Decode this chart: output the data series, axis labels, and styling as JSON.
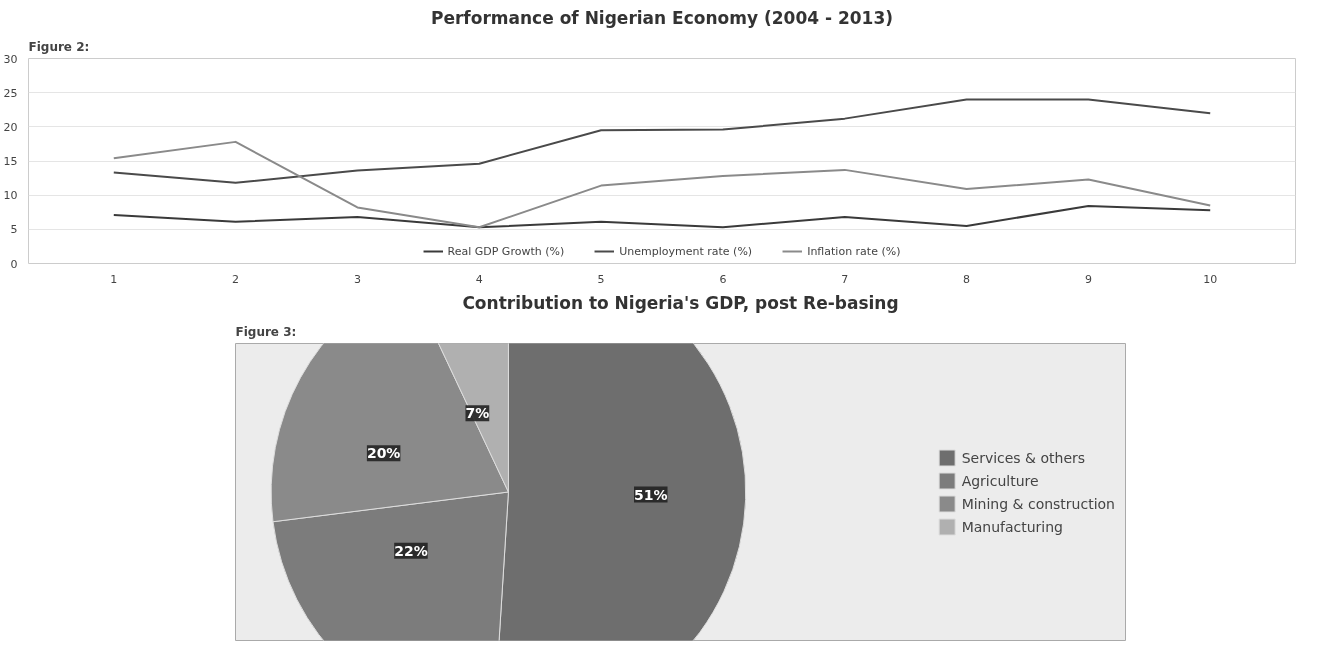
{
  "chart_data": [
    {
      "type": "line",
      "title": "Performance of Nigerian Economy (2004 - 2013)",
      "annotations": [
        "Figure 2:"
      ],
      "categories": [
        "1",
        "2",
        "3",
        "4",
        "5",
        "6",
        "7",
        "8",
        "9",
        "10"
      ],
      "series": [
        {
          "name": "Real GDP Growth (%)",
          "color": "#3a3a3a",
          "values": [
            7.1,
            6.1,
            6.8,
            5.3,
            6.1,
            5.3,
            6.8,
            5.5,
            8.4,
            7.8
          ]
        },
        {
          "name": "Unemployment rate (%)",
          "color": "#4a4a4a",
          "values": [
            13.3,
            11.8,
            13.6,
            14.6,
            19.5,
            19.6,
            21.2,
            24.0,
            24.0,
            22.0
          ]
        },
        {
          "name": "Inflation rate (%)",
          "color": "#8a8a8a",
          "values": [
            15.4,
            17.8,
            8.2,
            5.3,
            11.4,
            12.8,
            13.7,
            10.9,
            12.3,
            8.5
          ]
        }
      ],
      "ylim": [
        0,
        30
      ],
      "yticks": [
        0,
        5,
        10,
        15,
        20,
        25,
        30
      ],
      "grid": "y",
      "legend": "bottom"
    },
    {
      "type": "pie",
      "title": "Contribution to Nigeria's GDP, post Re-basing",
      "annotations": [
        "Figure 3:"
      ],
      "categories": [
        "Services & others",
        "Agriculture",
        "Mining & construction",
        "Manufacturing"
      ],
      "values": [
        51,
        22,
        20,
        7
      ],
      "colors": [
        "#6e6e6e",
        "#7c7c7c",
        "#8a8a8a",
        "#b0b0b0"
      ],
      "value_labels": [
        "51%",
        "22%",
        "20%",
        "7%"
      ],
      "legend": "right"
    }
  ]
}
